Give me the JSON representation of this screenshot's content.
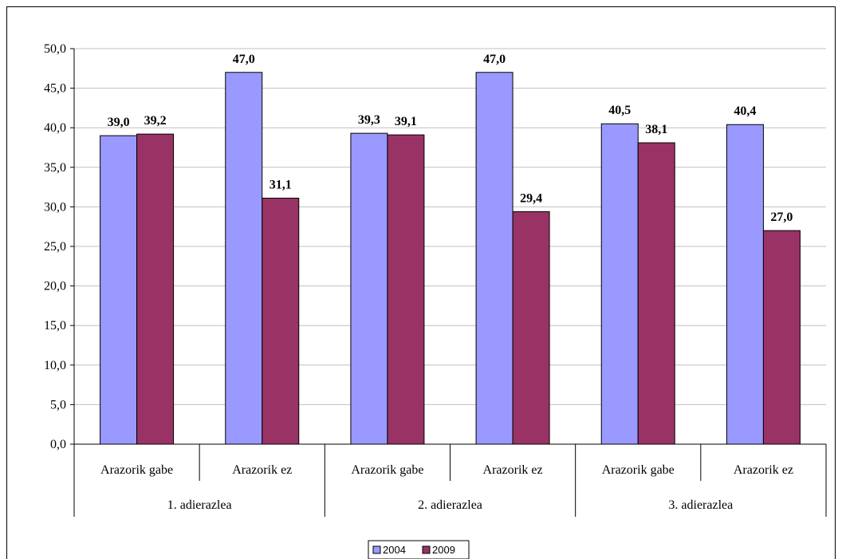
{
  "chart_data": {
    "type": "bar",
    "title": "",
    "xlabel": "",
    "ylabel": "",
    "ylim": [
      0,
      50
    ],
    "ytick_step": 5,
    "ytick_labels": [
      "0,0",
      "5,0",
      "10,0",
      "15,0",
      "20,0",
      "25,0",
      "30,0",
      "35,0",
      "40,0",
      "45,0",
      "50,0"
    ],
    "grid": true,
    "legend_position": "bottom",
    "categories": [
      "Arazorik gabe",
      "Arazorik ez",
      "Arazorik gabe",
      "Arazorik ez",
      "Arazorik gabe",
      "Arazorik ez"
    ],
    "groups": [
      "1. adierazlea",
      "2. adierazlea",
      "3. adierazlea"
    ],
    "series": [
      {
        "name": "2004",
        "color": "#9999ff",
        "values": [
          39.0,
          47.0,
          39.3,
          47.0,
          40.5,
          40.4
        ],
        "labels": [
          "39,0",
          "47,0",
          "39,3",
          "47,0",
          "40,5",
          "40,4"
        ]
      },
      {
        "name": "2009",
        "color": "#993366",
        "values": [
          39.2,
          31.1,
          39.1,
          29.4,
          38.1,
          27.0
        ],
        "labels": [
          "39,2",
          "31,1",
          "39,1",
          "29,4",
          "38,1",
          "27,0"
        ]
      }
    ]
  }
}
